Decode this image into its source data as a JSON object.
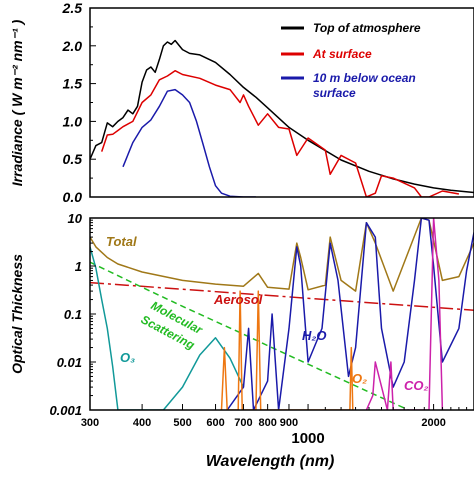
{
  "chart_data": [
    {
      "type": "line",
      "ylabel": "Irradiance ( W m⁻² nm⁻¹ )",
      "xscale": "log",
      "xlim": [
        300,
        2500
      ],
      "ylim": [
        0,
        2.5
      ],
      "yticks": [
        "0.0",
        "0.5",
        "1.0",
        "1.5",
        "2.0",
        "2.5"
      ],
      "legend_position": "top-right",
      "series": [
        {
          "name": "Top of atmosphere",
          "color": "#000000",
          "x": [
            300,
            310,
            320,
            330,
            340,
            350,
            360,
            370,
            380,
            390,
            400,
            410,
            420,
            430,
            440,
            450,
            460,
            470,
            480,
            500,
            520,
            550,
            600,
            650,
            700,
            750,
            800,
            900,
            1000,
            1200,
            1400,
            1600,
            1800,
            2000,
            2200,
            2500
          ],
          "y": [
            0.5,
            0.68,
            0.72,
            0.98,
            0.93,
            1.0,
            1.05,
            1.15,
            1.1,
            1.2,
            1.52,
            1.68,
            1.72,
            1.65,
            1.82,
            2.0,
            2.05,
            2.02,
            2.07,
            1.95,
            1.9,
            1.88,
            1.78,
            1.62,
            1.45,
            1.32,
            1.18,
            0.92,
            0.75,
            0.49,
            0.34,
            0.24,
            0.17,
            0.12,
            0.09,
            0.06
          ]
        },
        {
          "name": "At surface",
          "color": "#dd0000",
          "x": [
            320,
            330,
            340,
            350,
            360,
            380,
            400,
            420,
            440,
            460,
            480,
            500,
            550,
            600,
            650,
            687,
            700,
            720,
            760,
            800,
            850,
            900,
            940,
            1000,
            1100,
            1130,
            1200,
            1300,
            1380,
            1450,
            1500,
            1600,
            1800,
            1870,
            1950,
            2100,
            2300
          ],
          "y": [
            0.6,
            0.82,
            0.83,
            0.88,
            0.93,
            1.0,
            1.25,
            1.35,
            1.55,
            1.6,
            1.67,
            1.62,
            1.57,
            1.48,
            1.42,
            1.25,
            1.35,
            1.2,
            0.95,
            1.1,
            0.92,
            0.9,
            0.55,
            0.78,
            0.62,
            0.3,
            0.55,
            0.45,
            0.0,
            0.05,
            0.28,
            0.25,
            0.12,
            0.0,
            0.0,
            0.08,
            0.04
          ]
        },
        {
          "name": "10 m below ocean surface",
          "color": "#1a1aaa",
          "x": [
            360,
            380,
            400,
            420,
            440,
            460,
            480,
            500,
            520,
            540,
            560,
            580,
            600,
            620,
            650,
            700,
            750
          ],
          "y": [
            0.4,
            0.72,
            0.92,
            1.02,
            1.2,
            1.4,
            1.42,
            1.35,
            1.25,
            1.0,
            0.7,
            0.4,
            0.15,
            0.05,
            0.01,
            0.0,
            0.0
          ]
        }
      ]
    },
    {
      "type": "line",
      "ylabel": "Optical Thickness",
      "xlabel": "Wavelength (nm)",
      "xscale": "log",
      "yscale": "log",
      "xlim": [
        300,
        2500
      ],
      "ylim": [
        0.001,
        10
      ],
      "yticks": [
        "0.001",
        "0.01",
        "0.1",
        "1",
        "10"
      ],
      "xticks": [
        300,
        400,
        500,
        600,
        700,
        800,
        900,
        1000,
        2000
      ],
      "xtick_labels": [
        "300",
        "400",
        "500",
        "600",
        "700",
        "800",
        "900",
        "1000",
        "2000"
      ],
      "annotations": [
        "Total",
        "Aerosol",
        "Molecular",
        "Scattering",
        "H₂O",
        "O₃",
        "O₂",
        "CO₂"
      ],
      "series": [
        {
          "name": "Total",
          "color": "#a07818",
          "x": [
            300,
            310,
            330,
            350,
            400,
            500,
            600,
            700,
            760,
            800,
            900,
            940,
            960,
            1000,
            1100,
            1130,
            1200,
            1300,
            1380,
            1450,
            1600,
            1870,
            1950,
            2100,
            2300,
            2500
          ],
          "y": [
            4.0,
            2.5,
            1.5,
            1.1,
            0.75,
            0.5,
            0.42,
            0.38,
            0.7,
            0.36,
            0.33,
            3.0,
            1.5,
            0.32,
            0.4,
            4.0,
            0.5,
            0.3,
            8.0,
            3.0,
            0.3,
            10,
            9.0,
            0.5,
            0.6,
            3.0
          ]
        },
        {
          "name": "Aerosol",
          "color": "#cc1111",
          "x": [
            300,
            2500
          ],
          "y": [
            0.45,
            0.12
          ]
        },
        {
          "name": "Molecular Scattering",
          "color": "#22bb22",
          "x": [
            300,
            400,
            500,
            600,
            700,
            800,
            1000,
            1500,
            2000
          ],
          "y": [
            1.2,
            0.36,
            0.145,
            0.07,
            0.038,
            0.022,
            0.009,
            0.0018,
            0.00058
          ]
        },
        {
          "name": "O₃",
          "color": "#119999",
          "x": [
            300,
            310,
            320,
            330,
            340,
            350,
            450,
            500,
            550,
            600,
            650,
            700
          ],
          "y": [
            2.5,
            0.9,
            0.2,
            0.05,
            0.008,
            0.001,
            0.001,
            0.003,
            0.014,
            0.032,
            0.012,
            0.003
          ]
        },
        {
          "name": "H₂O",
          "color": "#1a1aaa",
          "x": [
            640,
            700,
            720,
            740,
            800,
            820,
            850,
            900,
            940,
            960,
            1000,
            1080,
            1130,
            1180,
            1250,
            1300,
            1380,
            1450,
            1500,
            1600,
            1700,
            1800,
            1870,
            1950,
            2000,
            2100,
            2300,
            2400,
            2500
          ],
          "y": [
            0.001,
            0.003,
            0.05,
            0.001,
            0.004,
            0.1,
            0.001,
            0.05,
            2.5,
            1.0,
            0.01,
            0.05,
            3.0,
            0.5,
            0.005,
            0.02,
            8.0,
            4.0,
            0.05,
            0.003,
            0.01,
            0.5,
            10,
            9.0,
            1.0,
            0.01,
            0.05,
            0.8,
            5.0
          ]
        },
        {
          "name": "O₂",
          "color": "#ee7711",
          "x": [
            620,
            630,
            640,
            680,
            687,
            695,
            750,
            760,
            770,
            1260,
            1270,
            1280
          ],
          "y": [
            0.001,
            0.02,
            0.001,
            0.001,
            0.3,
            0.001,
            0.001,
            0.3,
            0.001,
            0.001,
            0.02,
            0.001
          ]
        },
        {
          "name": "CO₂",
          "color": "#cc22aa",
          "x": [
            1380,
            1430,
            1450,
            1550,
            1580,
            1600,
            1950,
            2000,
            2060,
            2100
          ],
          "y": [
            0.001,
            0.002,
            0.01,
            0.001,
            0.01,
            0.001,
            0.001,
            10,
            0.5,
            0.001
          ]
        }
      ]
    }
  ]
}
